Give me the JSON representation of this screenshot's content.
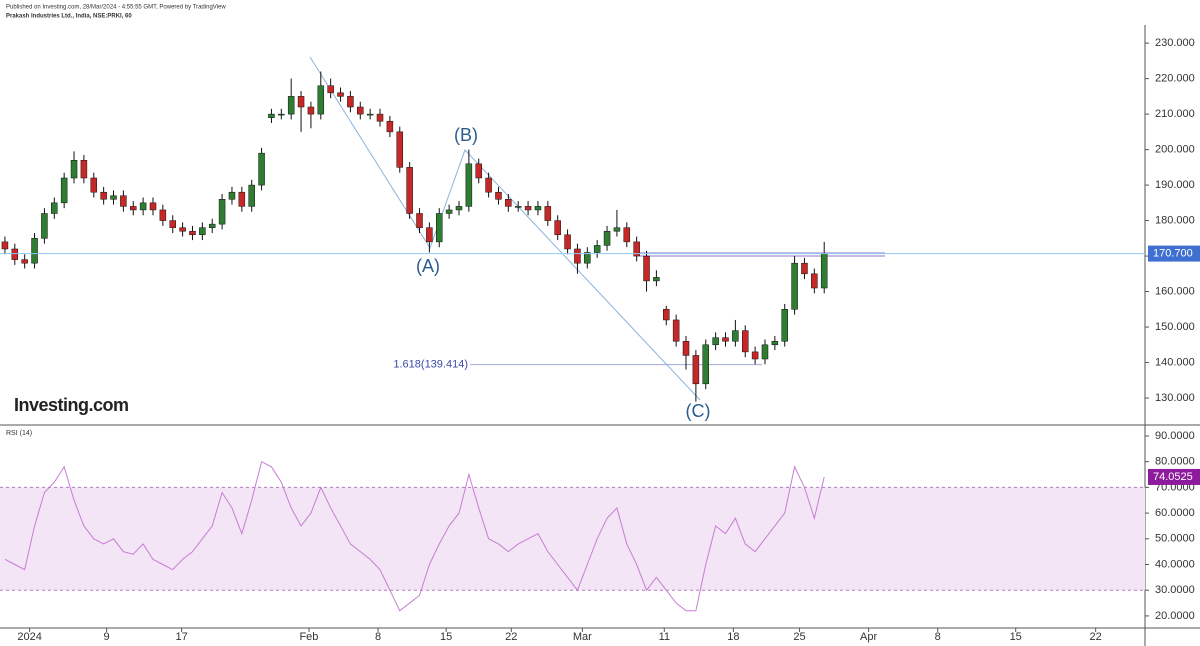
{
  "header": {
    "published": "Published on Investing.com, 28/Mar/2024 - 4:55:55 GMT, Powered by TradingView",
    "symbol": "Prakash Industries Ltd., India, NSE:PRKI, 60"
  },
  "logo": "Investing.com",
  "chart_data": [
    {
      "type": "candlestick",
      "open": [
        174,
        172,
        169,
        168,
        175,
        182,
        185,
        192,
        197,
        192,
        188,
        186,
        187,
        184,
        183,
        185,
        183,
        180,
        178,
        177,
        176,
        178,
        179,
        186,
        188,
        184,
        190,
        209,
        210,
        210,
        215,
        212,
        210,
        218,
        216,
        215,
        212,
        210,
        210,
        208,
        205,
        195,
        182,
        178,
        174,
        182,
        183,
        184,
        196,
        192,
        188,
        186,
        184,
        184,
        183,
        184,
        180,
        176,
        172,
        168,
        171,
        173,
        177,
        178,
        174,
        170,
        163,
        155,
        152,
        146,
        142,
        134,
        145,
        147,
        146,
        149,
        143,
        141,
        145,
        146,
        155,
        168,
        165,
        161
      ],
      "high": [
        175.5,
        173.5,
        170.5,
        176.5,
        183.5,
        186.5,
        193.5,
        199.5,
        198.5,
        193.5,
        189.5,
        188.5,
        188.5,
        185.5,
        186.5,
        186.5,
        184.5,
        181.5,
        179.5,
        178.5,
        179.5,
        180.5,
        187.5,
        189.5,
        189.5,
        191.5,
        200.5,
        211.5,
        211.5,
        220,
        216.5,
        213.5,
        222,
        220,
        217.5,
        216.5,
        213.5,
        211.5,
        211.5,
        209.5,
        206.5,
        196.5,
        183.5,
        179.5,
        183.5,
        184.5,
        185.5,
        200,
        197.5,
        193.5,
        189.5,
        187.5,
        185.5,
        185.5,
        185.5,
        185.5,
        181.5,
        177.5,
        173.5,
        172.5,
        174.5,
        178.5,
        183,
        179.5,
        175.5,
        171.5,
        166,
        156,
        153.5,
        147.5,
        143.5,
        146.5,
        148.5,
        148.5,
        152,
        150.5,
        144.5,
        146.5,
        147.5,
        156.5,
        170,
        169.5,
        166.5,
        174
      ],
      "low": [
        170.5,
        167.5,
        166.5,
        166.5,
        173.5,
        180.5,
        183.5,
        190.5,
        190.5,
        186.5,
        184.5,
        184.5,
        182.5,
        181.5,
        181.5,
        181.5,
        178.5,
        176.5,
        175.5,
        174.5,
        174.5,
        176.5,
        177.5,
        184.5,
        182.5,
        182.5,
        188.5,
        207.5,
        208.5,
        208.5,
        205,
        206,
        208.5,
        214.5,
        213.5,
        210.5,
        208.5,
        208.5,
        206.5,
        203.5,
        193.5,
        180.5,
        176.5,
        171,
        172.5,
        180.5,
        181.5,
        182.5,
        190.5,
        186.5,
        184.5,
        182.5,
        182.5,
        181.5,
        181.5,
        178.5,
        174.5,
        170.5,
        165,
        166.5,
        169.5,
        171.5,
        175.5,
        172.5,
        168.5,
        160,
        161.5,
        150.5,
        144.5,
        138,
        129,
        132.5,
        143.5,
        144.5,
        144.5,
        141.5,
        139.5,
        139.5,
        143.5,
        144.5,
        153.5,
        163.5,
        159.5,
        159.5
      ],
      "close": [
        172,
        169,
        168,
        175,
        182,
        185,
        192,
        197,
        192,
        188,
        186,
        187,
        184,
        183,
        185,
        183,
        180,
        178,
        177,
        176,
        178,
        179,
        186,
        188,
        184,
        190,
        199,
        210,
        210,
        215,
        212,
        210,
        218,
        216,
        215,
        212,
        210,
        210,
        208,
        205,
        195,
        182,
        178,
        174,
        182,
        183,
        184,
        196,
        192,
        188,
        186,
        184,
        184,
        183,
        184,
        180,
        176,
        172,
        168,
        171,
        173,
        177,
        178,
        174,
        170,
        163,
        164,
        152,
        146,
        142,
        134,
        145,
        147,
        146,
        149,
        143,
        141,
        145,
        146,
        155,
        168,
        165,
        161,
        170.7
      ],
      "up_color": "#2e7d32",
      "down_color": "#c62828",
      "xlim": [
        -0.5,
        115.5
      ],
      "ylim": [
        122.4,
        233.7
      ],
      "yticks": [
        {
          "value": 130,
          "label": "130.000"
        },
        {
          "value": 140,
          "label": "140.000"
        },
        {
          "value": 150,
          "label": "150.000"
        },
        {
          "value": 160,
          "label": "160.000"
        },
        {
          "value": 170,
          "label": "170.000"
        },
        {
          "value": 180,
          "label": "180.000"
        },
        {
          "value": 190,
          "label": "190.000"
        },
        {
          "value": 200,
          "label": "200.000"
        },
        {
          "value": 210,
          "label": "210.000"
        },
        {
          "value": 220,
          "label": "220.000"
        },
        {
          "value": 230,
          "label": "230.000"
        }
      ],
      "last_label": "170.700",
      "wave_labels": [
        "(A)",
        "(B)",
        "(C)"
      ],
      "fib": {
        "value": 139.414,
        "label": "1.618(139.414)"
      }
    },
    {
      "type": "line",
      "title": "RSI (14)",
      "color": "#c77dd4",
      "values": [
        42,
        40,
        38,
        55,
        68,
        72,
        78,
        65,
        55,
        50,
        48,
        50,
        45,
        44,
        48,
        42,
        40,
        38,
        42,
        45,
        50,
        55,
        68,
        62,
        52,
        65,
        80,
        78,
        72,
        62,
        55,
        60,
        70,
        62,
        55,
        48,
        45,
        42,
        38,
        30,
        22,
        25,
        28,
        40,
        48,
        55,
        60,
        75,
        62,
        50,
        48,
        45,
        48,
        50,
        52,
        45,
        40,
        35,
        30,
        40,
        50,
        58,
        62,
        48,
        40,
        30,
        35,
        30,
        25,
        22,
        22,
        40,
        55,
        52,
        58,
        48,
        45,
        50,
        55,
        60,
        78,
        70,
        58,
        74.0525
      ],
      "band": [
        30,
        70
      ],
      "xlim": [
        -0.5,
        115.5
      ],
      "ylim": [
        15.3,
        93.1
      ],
      "yticks": [
        {
          "value": 20,
          "label": "20.0000"
        },
        {
          "value": 30,
          "label": "30.0000"
        },
        {
          "value": 40,
          "label": "40.0000"
        },
        {
          "value": 50,
          "label": "50.0000"
        },
        {
          "value": 60,
          "label": "60.0000"
        },
        {
          "value": 70,
          "label": "70.0000"
        },
        {
          "value": 80,
          "label": "80.0000"
        },
        {
          "value": 90,
          "label": "90.0000"
        }
      ],
      "xticks": [
        {
          "value": 2.5,
          "label": "2024"
        },
        {
          "value": 10.3,
          "label": "9"
        },
        {
          "value": 17.9,
          "label": "17"
        },
        {
          "value": 30.8,
          "label": "Feb"
        },
        {
          "value": 37.8,
          "label": "8"
        },
        {
          "value": 44.7,
          "label": "15"
        },
        {
          "value": 51.3,
          "label": "22"
        },
        {
          "value": 58.5,
          "label": "Mar"
        },
        {
          "value": 66.8,
          "label": "11"
        },
        {
          "value": 73.8,
          "label": "18"
        },
        {
          "value": 80.5,
          "label": "25"
        },
        {
          "value": 87.5,
          "label": "Apr"
        },
        {
          "value": 94.5,
          "label": "8"
        },
        {
          "value": 102.4,
          "label": "15"
        },
        {
          "value": 110.5,
          "label": "22"
        }
      ]
    }
  ]
}
